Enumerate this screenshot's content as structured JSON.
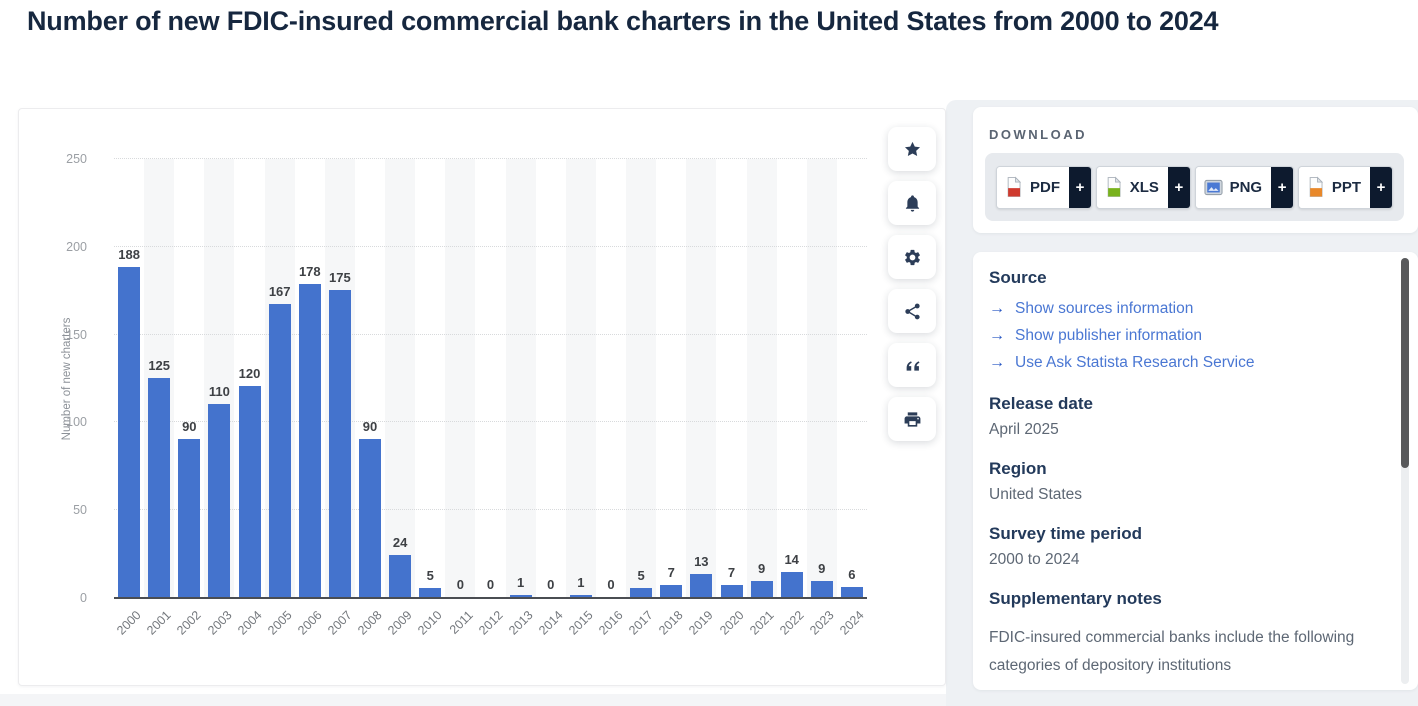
{
  "page": {
    "title": "Number of new FDIC-insured commercial bank charters in the United States from 2000 to 2024"
  },
  "toolbar": {
    "buttons": [
      {
        "name": "favorite",
        "icon": "star-icon"
      },
      {
        "name": "alerts",
        "icon": "bell-icon"
      },
      {
        "name": "settings",
        "icon": "gear-icon"
      },
      {
        "name": "share",
        "icon": "share-icon"
      },
      {
        "name": "cite",
        "icon": "quote-icon"
      },
      {
        "name": "print",
        "icon": "printer-icon"
      }
    ]
  },
  "download": {
    "label": "DOWNLOAD",
    "plus": "+",
    "formats": [
      {
        "label": "PDF",
        "icon": "pdf-file-icon",
        "color": "#cf3a2e",
        "style": "page"
      },
      {
        "label": "XLS",
        "icon": "xls-file-icon",
        "color": "#79b21d",
        "style": "page"
      },
      {
        "label": "PNG",
        "icon": "png-image-icon",
        "color": "#4a79d4",
        "style": "image"
      },
      {
        "label": "PPT",
        "icon": "ppt-file-icon",
        "color": "#e8882a",
        "style": "page"
      }
    ]
  },
  "info": {
    "source_heading": "Source",
    "links": [
      "Show sources information",
      "Show publisher information",
      "Use Ask Statista Research Service"
    ],
    "sections": [
      {
        "heading": "Release date",
        "value": "April 2025"
      },
      {
        "heading": "Region",
        "value": "United States"
      },
      {
        "heading": "Survey time period",
        "value": "2000 to 2024"
      }
    ],
    "notes_heading": "Supplementary notes",
    "notes_text": "FDIC-insured commercial banks include the following categories of depository institutions"
  },
  "chart_data": {
    "type": "bar",
    "title": "Number of new FDIC-insured commercial bank charters in the United States from 2000 to 2024",
    "categories": [
      "2000",
      "2001",
      "2002",
      "2003",
      "2004",
      "2005",
      "2006",
      "2007",
      "2008",
      "2009",
      "2010",
      "2011",
      "2012",
      "2013",
      "2014",
      "2015",
      "2016",
      "2017",
      "2018",
      "2019",
      "2020",
      "2021",
      "2022",
      "2023",
      "2024"
    ],
    "values": [
      188,
      125,
      90,
      110,
      120,
      167,
      178,
      175,
      90,
      24,
      5,
      0,
      0,
      1,
      0,
      1,
      0,
      5,
      7,
      13,
      7,
      9,
      14,
      9,
      6
    ],
    "xlabel": "",
    "ylabel": "Number of new charters",
    "ylim": [
      0,
      250
    ],
    "yticks": [
      0,
      50,
      100,
      150,
      200,
      250
    ],
    "grid": "horizontal-dotted",
    "legend": "none",
    "bar_color": "#4473cd"
  },
  "colors": {
    "bar_blue": "#4473cd",
    "link_blue": "#4a77d3",
    "heading_navy": "#233a5b",
    "title_navy": "#16273f",
    "plus_navy": "#0d1a2e"
  }
}
